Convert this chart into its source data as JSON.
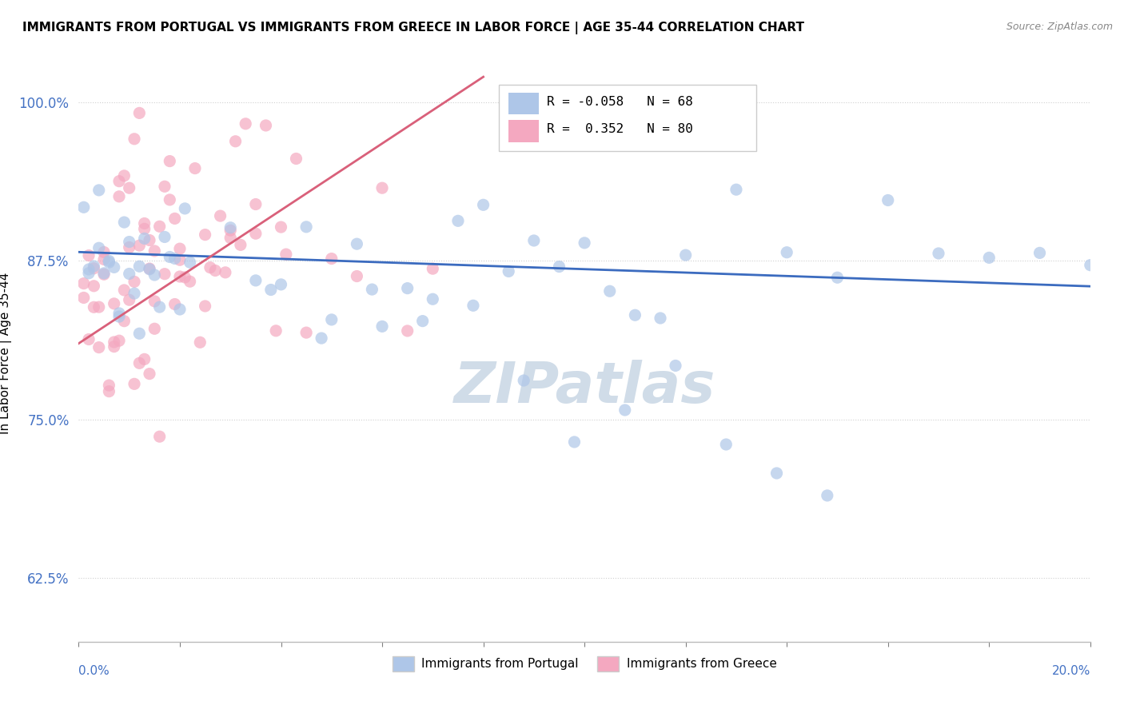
{
  "title": "IMMIGRANTS FROM PORTUGAL VS IMMIGRANTS FROM GREECE IN LABOR FORCE | AGE 35-44 CORRELATION CHART",
  "source": "Source: ZipAtlas.com",
  "ylabel": "In Labor Force | Age 35-44",
  "xlim": [
    0.0,
    0.2
  ],
  "ylim": [
    0.575,
    1.03
  ],
  "ytick_values": [
    0.625,
    0.75,
    0.875,
    1.0
  ],
  "ytick_labels": [
    "62.5%",
    "75.0%",
    "87.5%",
    "100.0%"
  ],
  "legend_blue_label": "Immigrants from Portugal",
  "legend_pink_label": "Immigrants from Greece",
  "R_blue": -0.058,
  "N_blue": 68,
  "R_pink": 0.352,
  "N_pink": 80,
  "blue_color": "#aec6e8",
  "pink_color": "#f4a8c0",
  "blue_line_color": "#3b6bbf",
  "pink_line_color": "#d9607a",
  "blue_line_x0": 0.0,
  "blue_line_y0": 0.882,
  "blue_line_x1": 0.2,
  "blue_line_y1": 0.855,
  "pink_line_x0": 0.0,
  "pink_line_y0": 0.81,
  "pink_line_x1": 0.08,
  "pink_line_y1": 1.02,
  "tick_color": "#4472c4",
  "grid_color": "#d0d0d0",
  "watermark_text": "ZIPatlas",
  "watermark_color": "#d0dce8"
}
